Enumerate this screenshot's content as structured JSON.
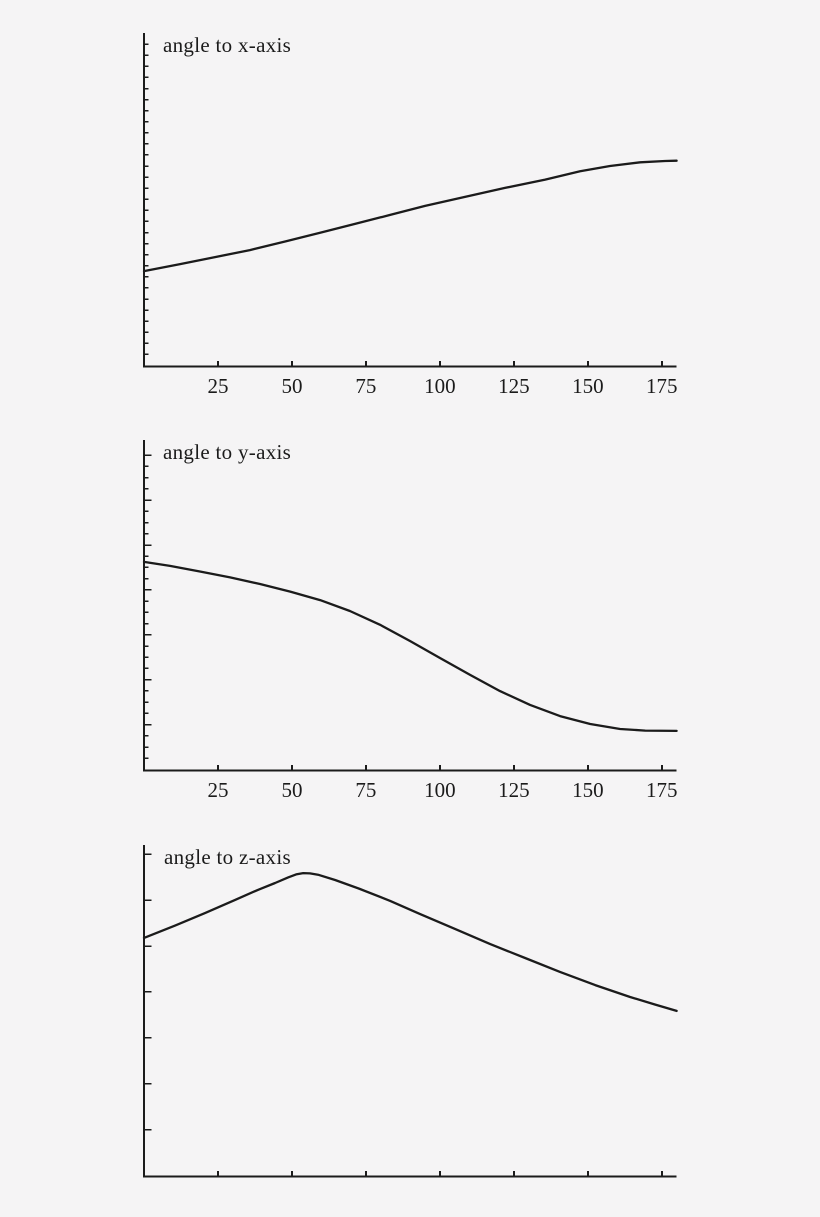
{
  "figure": {
    "background_color": "#f5f4f5",
    "ink_color": "#1b1b1b",
    "description": "Three stacked Mathematica-style line plots showing the angle of a rotated vector to each coordinate axis versus rotation angle (0-180 degrees). Y axes have tick marks but no numeric labels."
  },
  "chart_data": [
    {
      "type": "line",
      "title": "angle to x-axis",
      "xlabel": "",
      "ylabel": "",
      "xlim": [
        0,
        180
      ],
      "x_ticks": [
        25,
        50,
        75,
        100,
        125,
        150,
        175
      ],
      "x_tick_labels": [
        "25",
        "50",
        "75",
        "100",
        "125",
        "150",
        "175"
      ],
      "x_tick_labels_visible": true,
      "y_axis": {
        "tick_labels_visible": false,
        "tick_style": "minor-only",
        "minor_tick_count": 29
      },
      "grid": false,
      "legend": false,
      "y_unit": "fraction_of_plot_height (y-axis unlabeled in source)",
      "series": [
        {
          "name": "angle to x-axis",
          "x": [
            0,
            12.2,
            24,
            35.8,
            47.7,
            59.5,
            71.3,
            83.2,
            95,
            108.5,
            122,
            135.6,
            147.4,
            157.5,
            167.7,
            176.1,
            180
          ],
          "y_frac": [
            0.284,
            0.305,
            0.326,
            0.347,
            0.373,
            0.399,
            0.426,
            0.453,
            0.48,
            0.507,
            0.534,
            0.559,
            0.584,
            0.6,
            0.611,
            0.615,
            0.616
          ]
        }
      ]
    },
    {
      "type": "line",
      "title": "angle to y-axis",
      "xlabel": "",
      "ylabel": "",
      "xlim": [
        0,
        180
      ],
      "x_ticks": [
        25,
        50,
        75,
        100,
        125,
        150,
        175
      ],
      "x_tick_labels": [
        "25",
        "50",
        "75",
        "100",
        "125",
        "150",
        "175"
      ],
      "x_tick_labels_visible": true,
      "y_axis": {
        "tick_labels_visible": false,
        "tick_style": "minor-with-major",
        "minor_tick_count": 28,
        "major_every_nth": 4
      },
      "grid": false,
      "legend": false,
      "y_unit": "fraction_of_plot_height (y-axis unlabeled in source)",
      "series": [
        {
          "name": "angle to y-axis",
          "x": [
            0,
            8.8,
            18.9,
            29.1,
            39.2,
            49.4,
            59.5,
            69.6,
            79.8,
            89.9,
            100.1,
            110.2,
            120.3,
            130.5,
            140.6,
            150.8,
            160.9,
            169.4,
            180
          ],
          "y_frac": [
            0.63,
            0.618,
            0.601,
            0.583,
            0.563,
            0.54,
            0.514,
            0.481,
            0.439,
            0.39,
            0.338,
            0.287,
            0.238,
            0.196,
            0.162,
            0.138,
            0.123,
            0.118,
            0.117
          ]
        }
      ]
    },
    {
      "type": "line",
      "title": "angle to z-axis",
      "xlabel": "",
      "ylabel": "",
      "xlim": [
        0,
        180
      ],
      "x_ticks": [
        25,
        50,
        75,
        100,
        125,
        150,
        175
      ],
      "x_tick_labels": [],
      "x_tick_labels_visible": false,
      "y_axis": {
        "tick_labels_visible": false,
        "tick_style": "major-only",
        "major_tick_count": 7
      },
      "grid": false,
      "legend": false,
      "y_unit": "fraction_of_plot_height (y-axis unlabeled in source)",
      "series": [
        {
          "name": "angle to z-axis",
          "x": [
            0,
            10.5,
            20.6,
            30.8,
            38.5,
            44.3,
            48.7,
            51.4,
            53.8,
            56.1,
            58.8,
            64.6,
            73,
            83.2,
            93.3,
            105.1,
            117,
            128.8,
            140.6,
            152.5,
            164.3,
            172.8,
            180
          ],
          "y_frac": [
            0.719,
            0.756,
            0.794,
            0.834,
            0.864,
            0.885,
            0.902,
            0.911,
            0.915,
            0.914,
            0.91,
            0.894,
            0.867,
            0.831,
            0.791,
            0.746,
            0.7,
            0.658,
            0.616,
            0.576,
            0.54,
            0.517,
            0.498
          ]
        }
      ]
    }
  ]
}
